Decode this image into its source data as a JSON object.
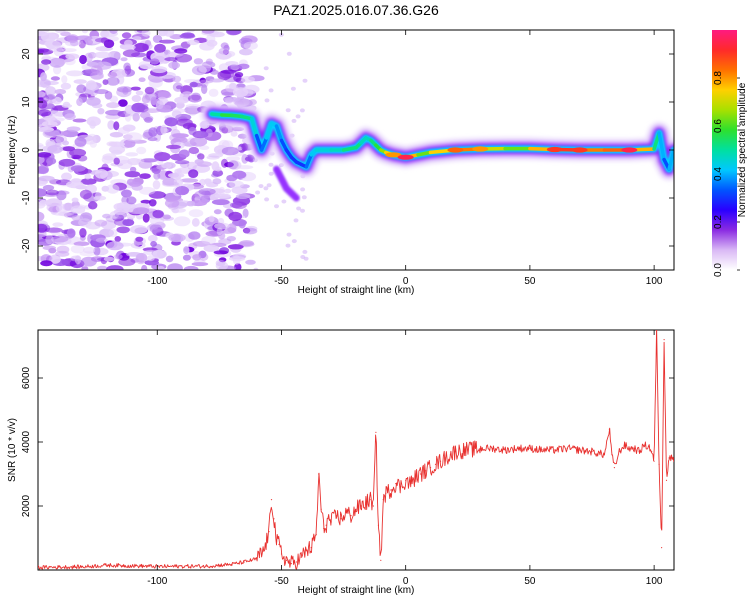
{
  "title": "PAZ1.2025.016.07.36.G26",
  "colors": {
    "snr_line": "#e8312f",
    "ridge_outer": "#7b00ff",
    "ridge_mid": "#00d4ff",
    "ridge_core": "#00ff66",
    "ridge_peak": "#ff2222",
    "noise": "#8a2be2"
  },
  "colorbar": {
    "label": "Normalized spectral amplitude",
    "ticks": [
      "0.0",
      "0.2",
      "0.4",
      "0.6",
      "0.8"
    ],
    "tick_values": [
      0.0,
      0.2,
      0.4,
      0.6,
      0.8
    ],
    "range": [
      0,
      1
    ],
    "stops": [
      "#ffffff",
      "#d9b8f5",
      "#8a2be2",
      "#2a00ff",
      "#0055ff",
      "#00c8ff",
      "#00e0a0",
      "#2ee02e",
      "#a8e000",
      "#ffd000",
      "#ff7000",
      "#ff2a2a",
      "#ff1a80"
    ]
  },
  "chart_data": [
    {
      "type": "heatmap",
      "title": "PAZ1.2025.016.07.36.G26",
      "xlabel": "Height of straight line (km)",
      "ylabel": "Frequency (Hz)",
      "xlim": [
        -148,
        108
      ],
      "ylim": [
        -25,
        25
      ],
      "xticks": [
        -100,
        -50,
        0,
        50,
        100
      ],
      "xtick_labels": [
        "-100",
        "-50",
        "0",
        "50",
        "100"
      ],
      "yticks": [
        -20,
        -10,
        0,
        10,
        20
      ],
      "ytick_labels": [
        "-20",
        "-10",
        "0",
        "10",
        "20"
      ],
      "ridge": {
        "x": [
          -78,
          -74,
          -70,
          -66,
          -62,
          -60,
          -58,
          -56,
          -54,
          -52,
          -50,
          -48,
          -46,
          -44,
          -42,
          -40,
          -38,
          -36,
          -30,
          -25,
          -20,
          -18,
          -16,
          -14,
          -12,
          -10,
          -8,
          -5,
          0,
          5,
          10,
          20,
          30,
          40,
          50,
          60,
          70,
          80,
          90,
          100,
          102,
          104,
          106,
          108
        ],
        "freq": [
          7.5,
          7.3,
          7.2,
          7.0,
          6.5,
          3.0,
          0.0,
          2.5,
          5.5,
          5.0,
          2.0,
          0.0,
          -1.5,
          -2.5,
          -3.0,
          -3.5,
          -1.0,
          0.0,
          0.0,
          0.0,
          0.5,
          1.5,
          2.5,
          2.0,
          1.0,
          0.0,
          -0.5,
          -1.0,
          -1.5,
          -1.0,
          -0.5,
          0.0,
          0.2,
          0.3,
          0.3,
          0.1,
          0.0,
          0.0,
          0.0,
          0.2,
          3.5,
          -2.0,
          -4.0,
          0.0
        ],
        "amplitude": [
          0.45,
          0.55,
          0.6,
          0.5,
          0.55,
          0.35,
          0.3,
          0.4,
          0.45,
          0.4,
          0.35,
          0.3,
          0.3,
          0.3,
          0.3,
          0.3,
          0.4,
          0.45,
          0.45,
          0.5,
          0.55,
          0.5,
          0.45,
          0.5,
          0.55,
          0.6,
          0.7,
          0.8,
          0.95,
          0.6,
          0.65,
          0.85,
          0.8,
          0.6,
          0.65,
          0.9,
          0.9,
          0.75,
          0.95,
          0.6,
          0.45,
          0.35,
          0.3,
          0.5
        ]
      },
      "secondary_features": [
        {
          "x": [
            -52,
            -50,
            -48,
            -46,
            -44
          ],
          "freq": [
            -4,
            -6,
            -8,
            -9,
            -10
          ],
          "amplitude": 0.35
        }
      ]
    },
    {
      "type": "line",
      "xlabel": "Height of straight line (km)",
      "ylabel": "SNR (10 * v/v)",
      "xlim": [
        -148,
        108
      ],
      "ylim": [
        0,
        7500
      ],
      "xticks": [
        -100,
        -50,
        0,
        50,
        100
      ],
      "xtick_labels": [
        "-100",
        "-50",
        "0",
        "50",
        "100"
      ],
      "yticks": [
        2000,
        4000,
        6000
      ],
      "ytick_labels": [
        "2000",
        "4000",
        "6000"
      ],
      "series": [
        {
          "x": [
            -148,
            -130,
            -120,
            -100,
            -80,
            -70,
            -65,
            -60,
            -57,
            -55,
            -54,
            -53,
            -52,
            -51,
            -50,
            -48,
            -46,
            -44,
            -42,
            -40,
            -38,
            -36,
            -35,
            -34,
            -33,
            -32,
            -31,
            -30,
            -28,
            -26,
            -24,
            -22,
            -20,
            -18,
            -16,
            -14,
            -13,
            -12,
            -11,
            -10,
            -9,
            -8,
            -6,
            -4,
            -2,
            0,
            2,
            4,
            6,
            8,
            10,
            12,
            14,
            16,
            18,
            20,
            25,
            30,
            35,
            40,
            45,
            50,
            55,
            60,
            65,
            70,
            75,
            80,
            82,
            83,
            84,
            86,
            88,
            90,
            92,
            94,
            96,
            98,
            99,
            100,
            101,
            102,
            103,
            104,
            105,
            106,
            108
          ],
          "values": [
            80,
            100,
            150,
            110,
            120,
            180,
            250,
            350,
            600,
            1200,
            2200,
            1600,
            900,
            800,
            500,
            300,
            200,
            250,
            400,
            600,
            700,
            1100,
            3000,
            1900,
            1300,
            1400,
            1600,
            1500,
            1700,
            1600,
            1800,
            1700,
            1900,
            2000,
            2100,
            2200,
            2000,
            4300,
            1400,
            300,
            2200,
            2400,
            2500,
            2700,
            2600,
            2800,
            2700,
            2900,
            3000,
            3100,
            3200,
            3300,
            3400,
            3500,
            3600,
            3700,
            3750,
            3800,
            3800,
            3750,
            3800,
            3800,
            3750,
            3750,
            3800,
            3750,
            3700,
            3600,
            4400,
            3600,
            3200,
            3700,
            3900,
            3800,
            3800,
            3700,
            3900,
            3850,
            3700,
            3400,
            7500,
            3300,
            700,
            7200,
            2800,
            3500,
            3500
          ]
        }
      ]
    }
  ]
}
